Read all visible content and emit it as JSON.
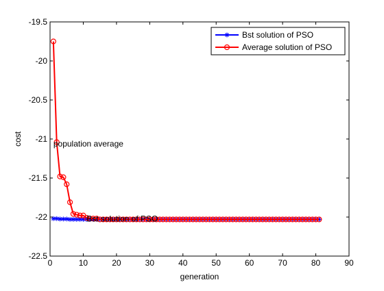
{
  "chart_data": {
    "type": "line",
    "title": "",
    "xlabel": "generation",
    "ylabel": "cost",
    "xlim": [
      0,
      90
    ],
    "ylim": [
      -22.5,
      -19.5
    ],
    "xticks": [
      0,
      10,
      20,
      30,
      40,
      50,
      60,
      70,
      80,
      90
    ],
    "yticks": [
      -19.5,
      -20,
      -20.5,
      -21,
      -21.5,
      -22,
      -22.5
    ],
    "xtick_labels": [
      "0",
      "10",
      "20",
      "30",
      "40",
      "50",
      "60",
      "70",
      "80",
      "90"
    ],
    "ytick_labels": [
      "-19.5",
      "-20",
      "-20.5",
      "-21",
      "-21.5",
      "-22",
      "-22.5"
    ],
    "grid": false,
    "legend_position": "top-right",
    "series": [
      {
        "name": "Bst solution of PSO",
        "color": "#0000ff",
        "marker": "asterisk",
        "x": [
          1,
          2,
          3,
          4,
          5,
          6,
          7,
          8,
          9,
          10,
          11,
          12,
          13,
          14,
          15,
          16,
          17,
          18,
          19,
          20,
          21,
          22,
          23,
          24,
          25,
          26,
          27,
          28,
          29,
          30,
          31,
          32,
          33,
          34,
          35,
          36,
          37,
          38,
          39,
          40,
          41,
          42,
          43,
          44,
          45,
          46,
          47,
          48,
          49,
          50,
          51,
          52,
          53,
          54,
          55,
          56,
          57,
          58,
          59,
          60,
          61,
          62,
          63,
          64,
          65,
          66,
          67,
          68,
          69,
          70,
          71,
          72,
          73,
          74,
          75,
          76,
          77,
          78,
          79,
          80,
          81
        ],
        "values": [
          -22.02,
          -22.02,
          -22.025,
          -22.025,
          -22.025,
          -22.03,
          -22.03,
          -22.03,
          -22.03,
          -22.03,
          -22.03,
          -22.03,
          -22.03,
          -22.03,
          -22.03,
          -22.03,
          -22.03,
          -22.03,
          -22.03,
          -22.03,
          -22.03,
          -22.03,
          -22.03,
          -22.03,
          -22.03,
          -22.03,
          -22.03,
          -22.03,
          -22.03,
          -22.03,
          -22.03,
          -22.03,
          -22.03,
          -22.03,
          -22.03,
          -22.03,
          -22.03,
          -22.03,
          -22.03,
          -22.03,
          -22.03,
          -22.03,
          -22.03,
          -22.03,
          -22.03,
          -22.03,
          -22.03,
          -22.03,
          -22.03,
          -22.03,
          -22.03,
          -22.03,
          -22.03,
          -22.03,
          -22.03,
          -22.03,
          -22.03,
          -22.03,
          -22.03,
          -22.03,
          -22.03,
          -22.03,
          -22.03,
          -22.03,
          -22.03,
          -22.03,
          -22.03,
          -22.03,
          -22.03,
          -22.03,
          -22.03,
          -22.03,
          -22.03,
          -22.03,
          -22.03,
          -22.03,
          -22.03,
          -22.03,
          -22.03,
          -22.03,
          -22.03
        ]
      },
      {
        "name": "Average solution of PSO",
        "color": "#ff0000",
        "marker": "circle",
        "x": [
          1,
          2,
          3,
          4,
          5,
          6,
          7,
          8,
          9,
          10,
          11,
          12,
          13,
          14,
          15,
          16,
          17,
          18,
          19,
          20,
          21,
          22,
          23,
          24,
          25,
          26,
          27,
          28,
          29,
          30,
          31,
          32,
          33,
          34,
          35,
          36,
          37,
          38,
          39,
          40,
          41,
          42,
          43,
          44,
          45,
          46,
          47,
          48,
          49,
          50,
          51,
          52,
          53,
          54,
          55,
          56,
          57,
          58,
          59,
          60,
          61,
          62,
          63,
          64,
          65,
          66,
          67,
          68,
          69,
          70,
          71,
          72,
          73,
          74,
          75,
          76,
          77,
          78,
          79,
          80,
          81
        ],
        "values": [
          -19.75,
          -21.04,
          -21.48,
          -21.49,
          -21.58,
          -21.81,
          -21.96,
          -21.97,
          -21.98,
          -21.98,
          -22.01,
          -22.02,
          -22.02,
          -22.02,
          -22.03,
          -22.03,
          -22.03,
          -22.03,
          -22.03,
          -22.03,
          -22.03,
          -22.03,
          -22.03,
          -22.03,
          -22.03,
          -22.03,
          -22.03,
          -22.03,
          -22.03,
          -22.03,
          -22.03,
          -22.03,
          -22.03,
          -22.03,
          -22.03,
          -22.03,
          -22.03,
          -22.03,
          -22.03,
          -22.03,
          -22.03,
          -22.03,
          -22.03,
          -22.03,
          -22.03,
          -22.03,
          -22.03,
          -22.03,
          -22.03,
          -22.03,
          -22.03,
          -22.03,
          -22.03,
          -22.03,
          -22.03,
          -22.03,
          -22.03,
          -22.03,
          -22.03,
          -22.03,
          -22.03,
          -22.03,
          -22.03,
          -22.03,
          -22.03,
          -22.03,
          -22.03,
          -22.03,
          -22.03,
          -22.03,
          -22.03,
          -22.03,
          -22.03,
          -22.03,
          -22.03,
          -22.03,
          -22.03,
          -22.03,
          -22.03,
          -22.03,
          -22.03
        ]
      }
    ],
    "annotations": [
      {
        "text": "population average",
        "x": 1.0,
        "y": -21.06
      },
      {
        "text": "Bst solution of PSO",
        "x": 11.0,
        "y": -22.02
      }
    ]
  }
}
